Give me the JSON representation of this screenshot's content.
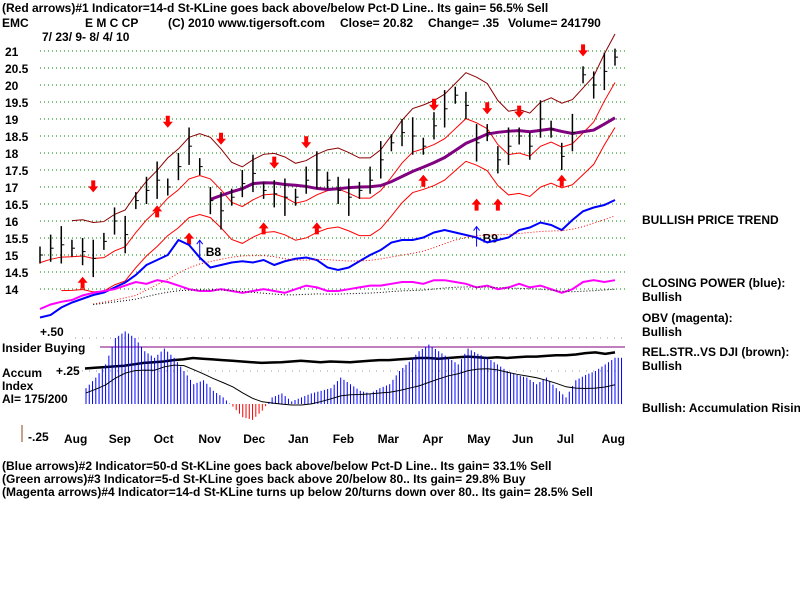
{
  "header": {
    "line1": "(Red arrows)#1 Indicator=14-d St-KLine goes back above/below Pct-D Line.. Its gain= 56.5% Sell",
    "symbol": "EMC",
    "name": "E M C CP",
    "copyright": "(C) 2010 www.tigersoft.com",
    "close": "Close=  20.82",
    "change": "Change= .35",
    "volume": "Volume= 241790",
    "date_range": "7/ 23/ 9- 8/ 4/ 10"
  },
  "right_panel": {
    "trend": "BULLISH PRICE TREND",
    "cp_label": "CLOSING POWER (blue):",
    "cp_value": "Bullish",
    "obv_label": "OBV (magenta):",
    "obv_value": "Bullish",
    "rs_label": "REL.STR..VS DJI (brown):",
    "rs_value": "Bullish",
    "accum": "Bullish: Accumulation Rising"
  },
  "left_panel": {
    "insider": "Insider Buying",
    "accum1": "Accum",
    "accum2": "Index",
    "ai": "AI= 175/200"
  },
  "footer": {
    "line2": "(Blue arrows)#2 Indicator=50-d St-KLine goes back above/below Pct-D Line.. Its gain= 33.1% Sell",
    "line3": "(Green arrows)#3 Indicator=5-d St-KLine goes back above 20/below 80.. Its gain= 29.8% Buy",
    "line4": "(Magenta arrows)#4 Indicator=14-d St-KLine turns up below 20/turns down over 80.. Its gain= 28.5% Sell"
  },
  "chart_data": {
    "type": "line",
    "price_ticks": [
      "21",
      "20.5",
      "20",
      "19.5",
      "19",
      "18.5",
      "18",
      "17.5",
      "17",
      "16.5",
      "16",
      "15.5",
      "15",
      "14.5",
      "14"
    ],
    "accum_ticks": [
      "+.50",
      "+.25",
      "-.25"
    ],
    "months": [
      "Aug",
      "Sep",
      "Oct",
      "Nov",
      "Dec",
      "Jan",
      "Feb",
      "Mar",
      "Apr",
      "May",
      "Jun",
      "Jul",
      "Aug"
    ],
    "grid": true,
    "price_closes": [
      15.0,
      15.2,
      15.3,
      15.2,
      15.1,
      14.9,
      15.4,
      16.0,
      15.6,
      16.6,
      16.9,
      17.2,
      17.0,
      17.6,
      18.2,
      17.6,
      16.6,
      16.3,
      16.7,
      17.1,
      17.4,
      16.9,
      16.8,
      16.7,
      16.7,
      17.2,
      17.5,
      17.2,
      16.9,
      16.7,
      16.9,
      17.2,
      17.8,
      18.3,
      18.6,
      18.5,
      18.2,
      18.8,
      19.3,
      19.7,
      19.4,
      18.3,
      18.6,
      17.8,
      18.2,
      18.5,
      18.2,
      19.0,
      18.7,
      17.9,
      18.6,
      20.3,
      20.0,
      20.4,
      20.82
    ],
    "closing_power": [
      10,
      12,
      18,
      22,
      25,
      28,
      30,
      34,
      38,
      44,
      52,
      56,
      60,
      72,
      68,
      58,
      50,
      52,
      54,
      55,
      54,
      56,
      52,
      55,
      57,
      58,
      56,
      50,
      48,
      50,
      55,
      60,
      64,
      70,
      72,
      72,
      74,
      78,
      80,
      78,
      76,
      74,
      70,
      72,
      74,
      80,
      82,
      86,
      84,
      80,
      88,
      95,
      98,
      100,
      104
    ],
    "obv": [
      40,
      45,
      48,
      50,
      55,
      58,
      60,
      62,
      66,
      70,
      68,
      72,
      70,
      66,
      62,
      60,
      60,
      62,
      60,
      58,
      60,
      62,
      60,
      58,
      62,
      66,
      64,
      60,
      60,
      62,
      64,
      66,
      66,
      68,
      70,
      70,
      68,
      72,
      72,
      70,
      68,
      64,
      66,
      62,
      64,
      68,
      64,
      66,
      62,
      58,
      62,
      70,
      72,
      70,
      72
    ],
    "rel_str": [
      10,
      12,
      14,
      16,
      18,
      22,
      26,
      28,
      30,
      34,
      36,
      40,
      38,
      36,
      34,
      32,
      30,
      28,
      26,
      27,
      28,
      30,
      32,
      30,
      28,
      30,
      29,
      28,
      30,
      32,
      34,
      34,
      36,
      38,
      40,
      40,
      38,
      40,
      42,
      44,
      42,
      40,
      42,
      40,
      42,
      44,
      44,
      46,
      48,
      48,
      50,
      54,
      56,
      52,
      56
    ],
    "accum_index": [
      0.12,
      0.2,
      0.3,
      0.5,
      0.55,
      0.5,
      0.4,
      0.35,
      0.42,
      0.35,
      0.25,
      0.15,
      0.18,
      0.1,
      0.05,
      -0.02,
      -0.1,
      -0.12,
      -0.05,
      0.05,
      0.08,
      0.02,
      0.05,
      0.08,
      0.1,
      0.12,
      0.2,
      0.15,
      0.1,
      0.08,
      0.12,
      0.15,
      0.25,
      0.32,
      0.4,
      0.45,
      0.4,
      0.35,
      0.3,
      0.42,
      0.38,
      0.35,
      0.3,
      0.25,
      0.22,
      0.2,
      0.15,
      0.2,
      0.12,
      0.05,
      0.18,
      0.22,
      0.25,
      0.3,
      0.35
    ],
    "red_down_arrows": [
      [
        5,
        16.9
      ],
      [
        12,
        18.8
      ],
      [
        17,
        18.3
      ],
      [
        22,
        17.6
      ],
      [
        25,
        18.2
      ],
      [
        37,
        19.3
      ],
      [
        42,
        19.2
      ],
      [
        45,
        19.1
      ],
      [
        51,
        20.9
      ]
    ],
    "red_up_arrows": [
      [
        4,
        14.3
      ],
      [
        11,
        16.4
      ],
      [
        14,
        15.6
      ],
      [
        21,
        15.9
      ],
      [
        26,
        15.9
      ],
      [
        36,
        17.3
      ],
      [
        41,
        16.6
      ],
      [
        43,
        16.6
      ],
      [
        49,
        17.3
      ]
    ],
    "signals": [
      {
        "label": "B8",
        "index": 15,
        "price": 15.2
      },
      {
        "label": "B9",
        "index": 41,
        "price": 15.6
      }
    ],
    "colors": {
      "price": "#000000",
      "bands_outer": "#8b0000",
      "bands_inner": "#ff0000",
      "ma": "#800080",
      "closing_power": "#0000ff",
      "obv": "#ff00ff",
      "accum_pos": "#0000ff",
      "accum_neg": "#ff0000",
      "grid": "#008000"
    }
  }
}
